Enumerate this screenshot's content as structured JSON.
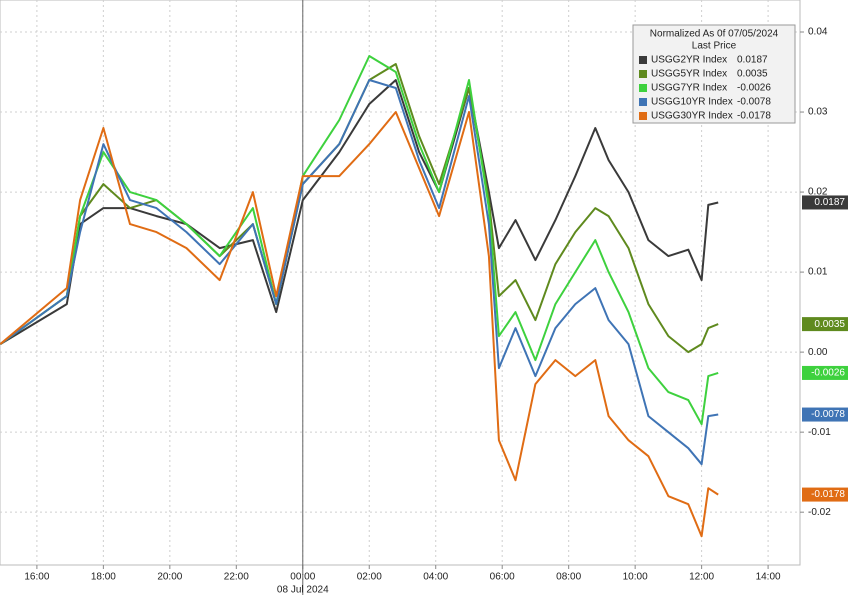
{
  "chart_data": {
    "type": "line",
    "legend_title": "Normalized As 0f 07/05/2024",
    "legend_subtitle": "Last Price",
    "legend_position": "upper right",
    "grid": true,
    "x": [
      14.9,
      16.9,
      17.3,
      18,
      18.8,
      19.6,
      20.5,
      21.5,
      22.5,
      23.2,
      24,
      25.1,
      26,
      26.8,
      27.5,
      28.1,
      29,
      29.6,
      29.9,
      30.4,
      31,
      31.6,
      32.2,
      32.8,
      33.2,
      33.8,
      34.4,
      35,
      35.6,
      36,
      36.2,
      36.5
    ],
    "xlim": [
      14.89,
      38.96
    ],
    "xticks": [
      {
        "value": 16,
        "label": "16:00"
      },
      {
        "value": 18,
        "label": "18:00"
      },
      {
        "value": 20,
        "label": "20:00"
      },
      {
        "value": 22,
        "label": "22:00"
      },
      {
        "value": 24,
        "label": "00:00"
      },
      {
        "value": 26,
        "label": "02:00"
      },
      {
        "value": 28,
        "label": "04:00"
      },
      {
        "value": 30,
        "label": "06:00"
      },
      {
        "value": 32,
        "label": "08:00"
      },
      {
        "value": 34,
        "label": "10:00"
      },
      {
        "value": 36,
        "label": "12:00"
      },
      {
        "value": 38,
        "label": "14:00"
      }
    ],
    "date_label": {
      "value": 24,
      "label": "08 Jul 2024"
    },
    "ylim": [
      -0.0266,
      0.044
    ],
    "yticks": [
      0.04,
      0.03,
      0.02,
      0.01,
      {
        "value": 0,
        "label": "0.00"
      },
      -0.01,
      -0.02
    ],
    "series": [
      {
        "name": "USGG2YR Index",
        "last_label": "0.0187",
        "color": "#3a3a3a",
        "values": [
          0.001,
          0.006,
          0.016,
          0.018,
          0.018,
          0.017,
          0.016,
          0.013,
          0.014,
          0.005,
          0.019,
          0.025,
          0.031,
          0.034,
          0.025,
          0.02,
          0.033,
          0.02,
          0.013,
          0.0165,
          0.0115,
          0.0165,
          0.022,
          0.028,
          0.024,
          0.02,
          0.014,
          0.012,
          0.0128,
          0.009,
          0.0184,
          0.0187
        ]
      },
      {
        "name": "USGG5YR Index",
        "last_label": "0.0035",
        "color": "#5f8a1e",
        "values": [
          0.001,
          0.007,
          0.017,
          0.021,
          0.018,
          0.019,
          0.016,
          0.012,
          0.016,
          0.006,
          0.021,
          0.026,
          0.034,
          0.036,
          0.027,
          0.021,
          0.033,
          0.019,
          0.007,
          0.009,
          0.004,
          0.011,
          0.015,
          0.018,
          0.017,
          0.013,
          0.006,
          0.002,
          0.0,
          0.001,
          0.003,
          0.0035
        ]
      },
      {
        "name": "USGG7YR Index",
        "last_label": "-0.0026",
        "color": "#3ed13e",
        "values": [
          0.001,
          0.007,
          0.017,
          0.025,
          0.02,
          0.019,
          0.016,
          0.012,
          0.018,
          0.006,
          0.022,
          0.029,
          0.037,
          0.035,
          0.026,
          0.02,
          0.034,
          0.018,
          0.002,
          0.005,
          -0.001,
          0.006,
          0.01,
          0.014,
          0.01,
          0.005,
          -0.002,
          -0.005,
          -0.006,
          -0.009,
          -0.003,
          -0.0026
        ]
      },
      {
        "name": "USGG10YR Index",
        "last_label": "-0.0078",
        "color": "#3f74b5",
        "values": [
          0.001,
          0.007,
          0.015,
          0.026,
          0.019,
          0.018,
          0.015,
          0.011,
          0.016,
          0.006,
          0.021,
          0.026,
          0.034,
          0.033,
          0.024,
          0.018,
          0.032,
          0.016,
          -0.002,
          0.003,
          -0.003,
          0.003,
          0.006,
          0.008,
          0.004,
          0.001,
          -0.008,
          -0.01,
          -0.012,
          -0.014,
          -0.008,
          -0.0078
        ]
      },
      {
        "name": "USGG30YR Index",
        "last_label": "-0.0178",
        "color": "#e06c14",
        "values": [
          0.001,
          0.008,
          0.019,
          0.028,
          0.016,
          0.015,
          0.013,
          0.009,
          0.02,
          0.007,
          0.022,
          0.022,
          0.026,
          0.03,
          0.023,
          0.017,
          0.03,
          0.012,
          -0.011,
          -0.016,
          -0.004,
          -0.001,
          -0.003,
          -0.001,
          -0.008,
          -0.011,
          -0.013,
          -0.018,
          -0.019,
          -0.023,
          -0.017,
          -0.0178
        ]
      }
    ]
  }
}
